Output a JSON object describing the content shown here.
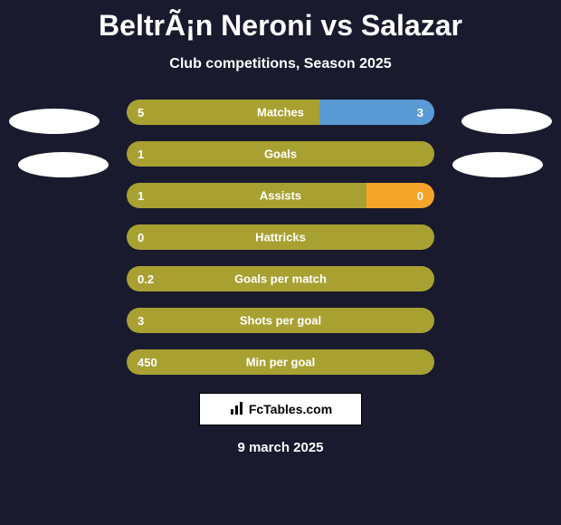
{
  "title": "BeltrÃ¡n Neroni vs Salazar",
  "subtitle": "Club competitions, Season 2025",
  "colors": {
    "background": "#1a1a2e",
    "bar_olive": "#a8a132",
    "bar_blue": "#5b9bd5",
    "bar_orange": "#f4a428",
    "ellipse": "#ffffff",
    "text": "#ffffff"
  },
  "stats": [
    {
      "label": "Matches",
      "left_value": "5",
      "right_value": "3",
      "left_color": "#a8a132",
      "right_color": "#5b9bd5",
      "left_width": 62.5,
      "right_width": 37.5,
      "show_right_value": true
    },
    {
      "label": "Goals",
      "left_value": "1",
      "right_value": "",
      "left_color": "#a8a132",
      "right_color": "",
      "left_width": 100,
      "right_width": 0,
      "show_right_value": false
    },
    {
      "label": "Assists",
      "left_value": "1",
      "right_value": "0",
      "left_color": "#a8a132",
      "right_color": "#f4a428",
      "left_width": 78,
      "right_width": 22,
      "show_right_value": true
    },
    {
      "label": "Hattricks",
      "left_value": "0",
      "right_value": "",
      "left_color": "#a8a132",
      "right_color": "",
      "left_width": 100,
      "right_width": 0,
      "show_right_value": false
    },
    {
      "label": "Goals per match",
      "left_value": "0.2",
      "right_value": "",
      "left_color": "#a8a132",
      "right_color": "",
      "left_width": 100,
      "right_width": 0,
      "show_right_value": false
    },
    {
      "label": "Shots per goal",
      "left_value": "3",
      "right_value": "",
      "left_color": "#a8a132",
      "right_color": "",
      "left_width": 100,
      "right_width": 0,
      "show_right_value": false
    },
    {
      "label": "Min per goal",
      "left_value": "450",
      "right_value": "",
      "left_color": "#a8a132",
      "right_color": "",
      "left_width": 100,
      "right_width": 0,
      "show_right_value": false
    }
  ],
  "watermark": {
    "icon": "📊",
    "text": "FcTables.com"
  },
  "date": "9 march 2025"
}
